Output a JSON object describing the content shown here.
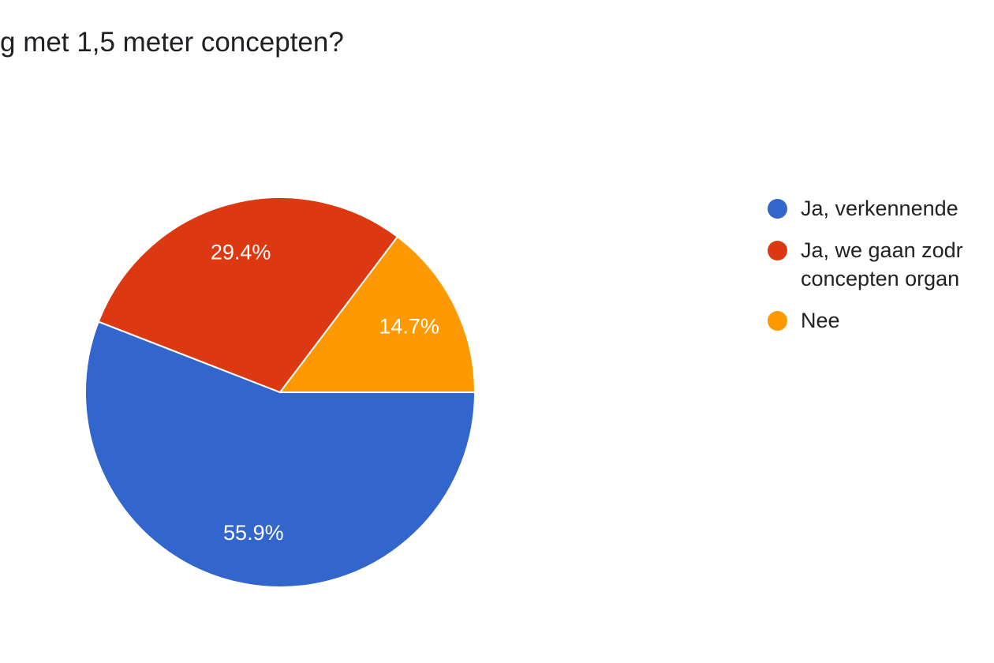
{
  "chart_data": {
    "type": "pie",
    "title": "g met 1,5 meter concepten?",
    "series": [
      {
        "name": "Ja, verkennende",
        "color": "#3366cc",
        "values": [
          55.9
        ],
        "value_labels": [
          "55.9%"
        ]
      },
      {
        "name": "Ja, we gaan zodr concepten organ",
        "color": "#dc3912",
        "values": [
          29.4
        ],
        "value_labels": [
          "29.4%"
        ]
      },
      {
        "name": "Nee",
        "color": "#ff9900",
        "values": [
          14.7
        ],
        "value_labels": [
          "14.7%"
        ]
      }
    ],
    "legend": "right"
  }
}
